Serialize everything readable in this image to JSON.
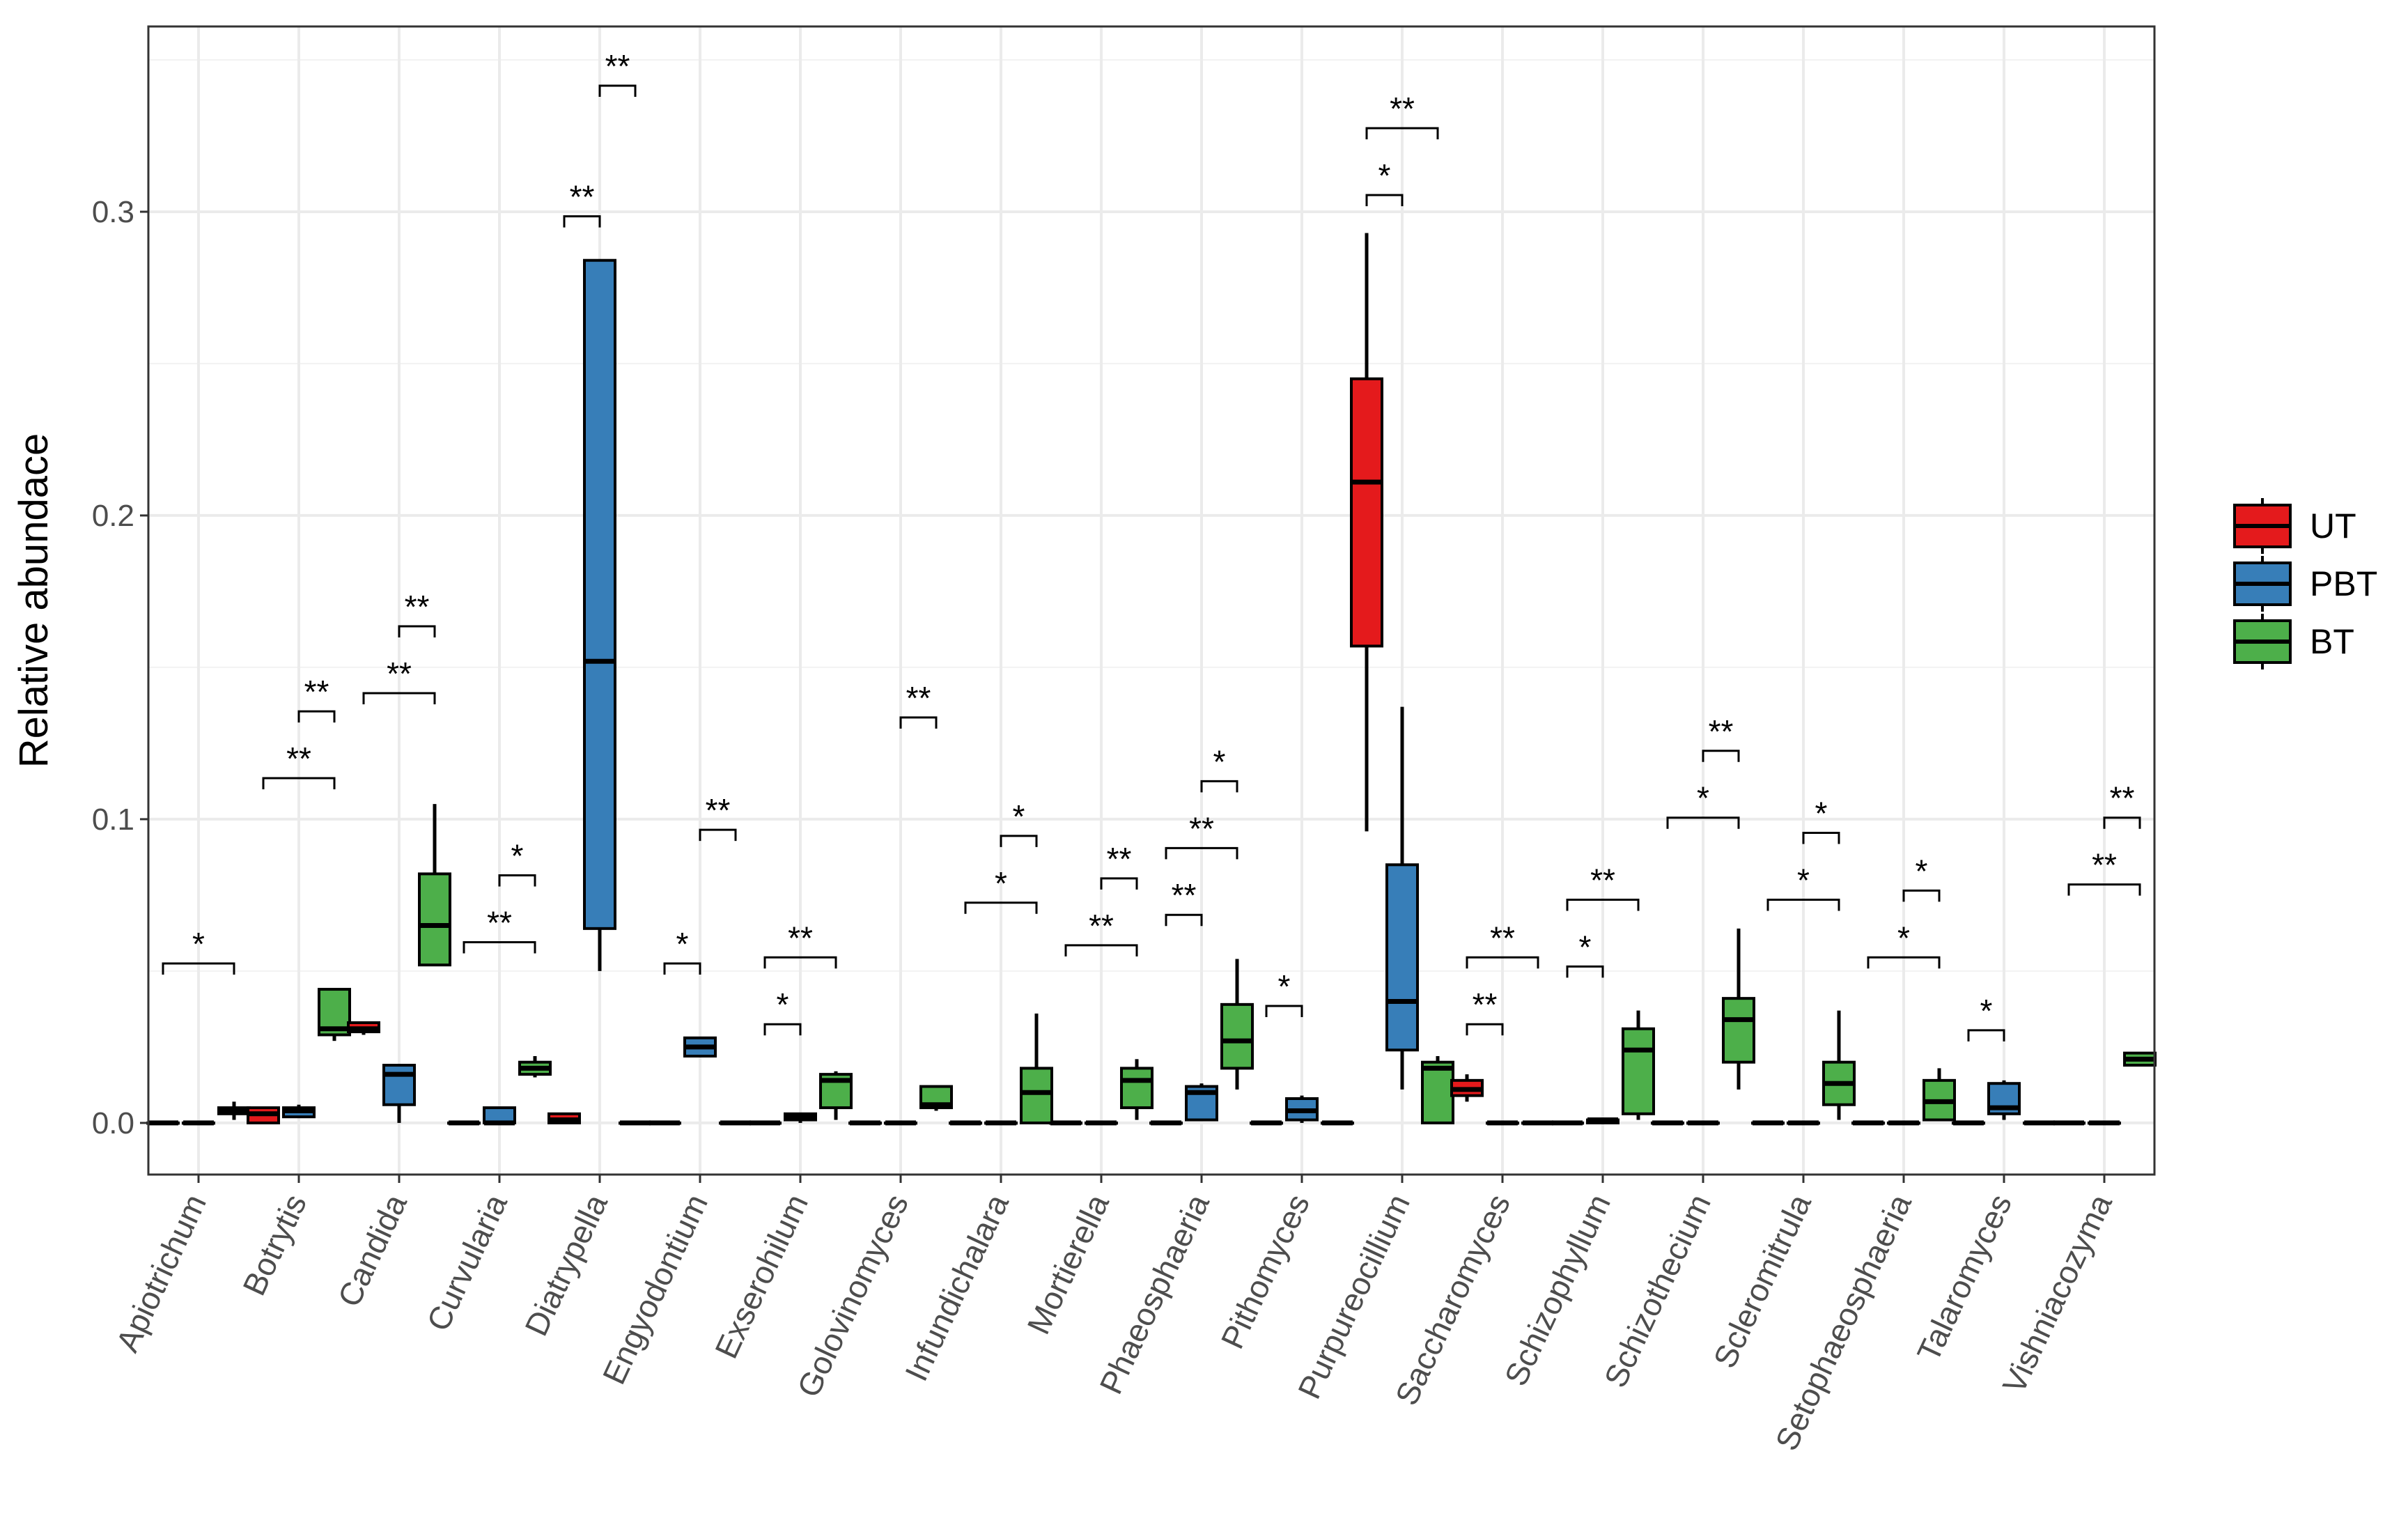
{
  "chart_data": {
    "type": "boxplot",
    "title": "",
    "xlabel": "",
    "ylabel": "Relative abundace",
    "ylim": [
      -0.017,
      0.361
    ],
    "yticks": [
      0.0,
      0.1,
      0.2,
      0.3
    ],
    "ytick_labels": [
      "0.0",
      "0.1",
      "0.2",
      "0.3"
    ],
    "grid": true,
    "legend_position": "right",
    "groups": [
      {
        "name": "UT",
        "color": "#e41a1c"
      },
      {
        "name": "PBT",
        "color": "#377eb8"
      },
      {
        "name": "BT",
        "color": "#4daf4a"
      }
    ],
    "categories": [
      "Apiotrichum",
      "Botrytis",
      "Candida",
      "Curvularia",
      "Diatrypella",
      "Engyodontium",
      "Exserohilum",
      "Golovinomyces",
      "Infundichalara",
      "Mortierella",
      "Phaeosphaeria",
      "Pithomyces",
      "Purpureocillium",
      "Saccharomyces",
      "Schizophyllum",
      "Schizothecium",
      "Scleromitrula",
      "Setophaeosphaeria",
      "Talaromyces",
      "Vishniacozyma"
    ],
    "boxes": [
      [
        [
          0,
          0,
          0,
          0,
          0
        ],
        [
          0,
          0,
          0,
          0,
          0
        ],
        [
          0.001,
          0.003,
          0.004,
          0.005,
          0.007
        ]
      ],
      [
        [
          0,
          0,
          0.003,
          0.005,
          0.005
        ],
        [
          0.002,
          0.002,
          0.004,
          0.005,
          0.006
        ],
        [
          0.027,
          0.029,
          0.031,
          0.044,
          0.044
        ]
      ],
      [
        [
          0.029,
          0.03,
          0.031,
          0.033,
          0.033
        ],
        [
          0.0,
          0.006,
          0.016,
          0.019,
          0.019
        ],
        [
          0.052,
          0.052,
          0.065,
          0.082,
          0.105
        ]
      ],
      [
        [
          0,
          0,
          0,
          0,
          0
        ],
        [
          0,
          0,
          0,
          0.005,
          0.005
        ],
        [
          0.015,
          0.016,
          0.018,
          0.02,
          0.022
        ]
      ],
      [
        [
          0,
          0,
          0.001,
          0.003,
          0.003
        ],
        [
          0.05,
          0.064,
          0.152,
          0.284,
          0.284
        ],
        [
          0,
          0,
          0,
          0,
          0
        ]
      ],
      [
        [
          0,
          0,
          0,
          0,
          0
        ],
        [
          0.022,
          0.022,
          0.025,
          0.028,
          0.028
        ],
        [
          0,
          0,
          0,
          0,
          0
        ]
      ],
      [
        [
          0,
          0,
          0,
          0,
          0
        ],
        [
          0,
          0.001,
          0.002,
          0.003,
          0.003
        ],
        [
          0.001,
          0.005,
          0.014,
          0.016,
          0.017
        ]
      ],
      [
        [
          0,
          0,
          0,
          0,
          0
        ],
        [
          0,
          0,
          0,
          0,
          0
        ],
        [
          0.004,
          0.005,
          0.006,
          0.012,
          0.012
        ]
      ],
      [
        [
          0,
          0,
          0,
          0,
          0
        ],
        [
          0,
          0,
          0,
          0,
          0
        ],
        [
          0,
          0,
          0.01,
          0.018,
          0.036
        ]
      ],
      [
        [
          0,
          0,
          0,
          0,
          0
        ],
        [
          0,
          0,
          0,
          0,
          0
        ],
        [
          0.001,
          0.005,
          0.014,
          0.018,
          0.021
        ]
      ],
      [
        [
          0,
          0,
          0,
          0,
          0
        ],
        [
          0.001,
          0.001,
          0.01,
          0.012,
          0.013
        ],
        [
          0.011,
          0.018,
          0.027,
          0.039,
          0.054
        ]
      ],
      [
        [
          0,
          0,
          0,
          0,
          0
        ],
        [
          0,
          0.001,
          0.004,
          0.008,
          0.009
        ],
        [
          0,
          0,
          0,
          0,
          0
        ]
      ],
      [
        [
          0.096,
          0.157,
          0.211,
          0.245,
          0.293
        ],
        [
          0.011,
          0.024,
          0.04,
          0.085,
          0.137
        ],
        [
          0,
          0,
          0.018,
          0.02,
          0.022
        ]
      ],
      [
        [
          0.007,
          0.009,
          0.011,
          0.014,
          0.016
        ],
        [
          0,
          0,
          0,
          0,
          0
        ],
        [
          0,
          0,
          0,
          0,
          0
        ]
      ],
      [
        [
          0,
          0,
          0,
          0,
          0
        ],
        [
          0,
          0,
          0.001,
          0.001,
          0.001
        ],
        [
          0.001,
          0.003,
          0.024,
          0.031,
          0.037
        ]
      ],
      [
        [
          0,
          0,
          0,
          0,
          0
        ],
        [
          0,
          0,
          0,
          0,
          0
        ],
        [
          0.011,
          0.02,
          0.034,
          0.041,
          0.064
        ]
      ],
      [
        [
          0,
          0,
          0,
          0,
          0
        ],
        [
          0,
          0,
          0,
          0,
          0
        ],
        [
          0.001,
          0.006,
          0.013,
          0.02,
          0.037
        ]
      ],
      [
        [
          0,
          0,
          0,
          0,
          0
        ],
        [
          0,
          0,
          0,
          0,
          0
        ],
        [
          0.001,
          0.001,
          0.007,
          0.014,
          0.018
        ]
      ],
      [
        [
          0,
          0,
          0,
          0,
          0
        ],
        [
          0.001,
          0.003,
          0.005,
          0.013,
          0.014
        ],
        [
          0,
          0,
          0,
          0,
          0
        ]
      ],
      [
        [
          0,
          0,
          0,
          0,
          0
        ],
        [
          0,
          0,
          0,
          0,
          0
        ],
        [
          0.019,
          0.019,
          0.021,
          0.023,
          0.023
        ]
      ]
    ],
    "significance": [
      {
        "cat": 0,
        "from": 0,
        "to": 2,
        "y": 0.0525,
        "label": "*"
      },
      {
        "cat": 1,
        "from": 0,
        "to": 2,
        "y": 0.1135,
        "label": "**"
      },
      {
        "cat": 1,
        "from": 1,
        "to": 2,
        "y": 0.1355,
        "label": "**"
      },
      {
        "cat": 2,
        "from": 0,
        "to": 2,
        "y": 0.1415,
        "label": "**"
      },
      {
        "cat": 2,
        "from": 1,
        "to": 2,
        "y": 0.1635,
        "label": "**"
      },
      {
        "cat": 3,
        "from": 0,
        "to": 2,
        "y": 0.0595,
        "label": "**"
      },
      {
        "cat": 3,
        "from": 1,
        "to": 2,
        "y": 0.0815,
        "label": "*"
      },
      {
        "cat": 4,
        "from": 0,
        "to": 1,
        "y": 0.2985,
        "label": "**"
      },
      {
        "cat": 4,
        "from": 1,
        "to": 2,
        "y": 0.3415,
        "label": "**"
      },
      {
        "cat": 5,
        "from": 0,
        "to": 1,
        "y": 0.0525,
        "label": "*"
      },
      {
        "cat": 5,
        "from": 1,
        "to": 2,
        "y": 0.0965,
        "label": "**"
      },
      {
        "cat": 6,
        "from": 0,
        "to": 1,
        "y": 0.0325,
        "label": "*"
      },
      {
        "cat": 6,
        "from": 0,
        "to": 2,
        "y": 0.0545,
        "label": "**"
      },
      {
        "cat": 7,
        "from": 1,
        "to": 2,
        "y": 0.1335,
        "label": "**"
      },
      {
        "cat": 8,
        "from": 0,
        "to": 2,
        "y": 0.0725,
        "label": "*"
      },
      {
        "cat": 8,
        "from": 1,
        "to": 2,
        "y": 0.0945,
        "label": "*"
      },
      {
        "cat": 9,
        "from": 0,
        "to": 2,
        "y": 0.0585,
        "label": "**"
      },
      {
        "cat": 9,
        "from": 1,
        "to": 2,
        "y": 0.0805,
        "label": "**"
      },
      {
        "cat": 10,
        "from": 0,
        "to": 1,
        "y": 0.0685,
        "label": "**"
      },
      {
        "cat": 10,
        "from": 0,
        "to": 2,
        "y": 0.0905,
        "label": "**"
      },
      {
        "cat": 10,
        "from": 1,
        "to": 2,
        "y": 0.1125,
        "label": "*"
      },
      {
        "cat": 11,
        "from": 0,
        "to": 1,
        "y": 0.0385,
        "label": "*"
      },
      {
        "cat": 12,
        "from": 0,
        "to": 1,
        "y": 0.3055,
        "label": "*"
      },
      {
        "cat": 12,
        "from": 0,
        "to": 2,
        "y": 0.3275,
        "label": "**"
      },
      {
        "cat": 13,
        "from": 0,
        "to": 1,
        "y": 0.0325,
        "label": "**"
      },
      {
        "cat": 13,
        "from": 0,
        "to": 2,
        "y": 0.0545,
        "label": "**"
      },
      {
        "cat": 14,
        "from": 0,
        "to": 1,
        "y": 0.0515,
        "label": "*"
      },
      {
        "cat": 14,
        "from": 0,
        "to": 2,
        "y": 0.0735,
        "label": "**"
      },
      {
        "cat": 15,
        "from": 0,
        "to": 2,
        "y": 0.1005,
        "label": "*"
      },
      {
        "cat": 15,
        "from": 1,
        "to": 2,
        "y": 0.1225,
        "label": "**"
      },
      {
        "cat": 16,
        "from": 0,
        "to": 2,
        "y": 0.0735,
        "label": "*"
      },
      {
        "cat": 16,
        "from": 1,
        "to": 2,
        "y": 0.0955,
        "label": "*"
      },
      {
        "cat": 17,
        "from": 0,
        "to": 2,
        "y": 0.0545,
        "label": "*"
      },
      {
        "cat": 17,
        "from": 1,
        "to": 2,
        "y": 0.0765,
        "label": "*"
      },
      {
        "cat": 18,
        "from": 0,
        "to": 1,
        "y": 0.0305,
        "label": "*"
      },
      {
        "cat": 19,
        "from": 0,
        "to": 2,
        "y": 0.0785,
        "label": "**"
      },
      {
        "cat": 19,
        "from": 1,
        "to": 2,
        "y": 0.1005,
        "label": "**"
      }
    ]
  }
}
